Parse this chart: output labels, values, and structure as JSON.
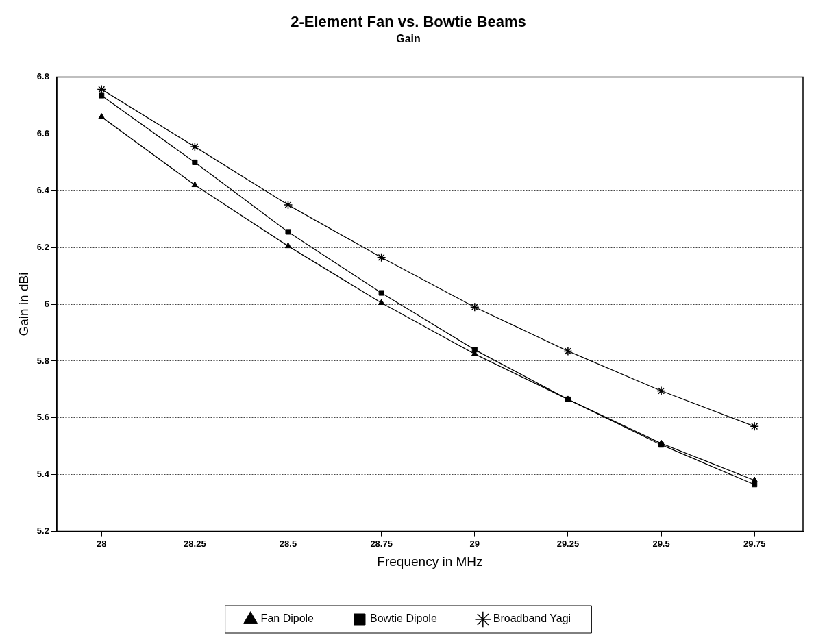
{
  "chart_data": {
    "type": "line",
    "title": "2-Element Fan vs. Bowtie Beams",
    "subtitle": "Gain",
    "xlabel": "Frequency in MHz",
    "ylabel": "Gain in dBi",
    "x": [
      28,
      28.25,
      28.5,
      28.75,
      29,
      29.25,
      29.5,
      29.75
    ],
    "series": [
      {
        "name": "Fan Dipole",
        "color": "#000000",
        "marker": "triangle",
        "values": [
          6.66,
          6.42,
          6.205,
          6.005,
          5.825,
          5.665,
          5.51,
          5.38
        ]
      },
      {
        "name": "Bowtie Dipole",
        "color": "#000000",
        "marker": "square",
        "values": [
          6.735,
          6.5,
          6.255,
          6.04,
          5.84,
          5.665,
          5.505,
          5.365
        ]
      },
      {
        "name": "Broadband Yagi",
        "color": "#000000",
        "marker": "cross",
        "values": [
          6.757,
          6.555,
          6.35,
          6.165,
          5.99,
          5.835,
          5.695,
          5.57
        ]
      }
    ],
    "xlim": [
      27.88,
      29.88
    ],
    "xticks": [
      28,
      28.25,
      28.5,
      28.75,
      29,
      29.25,
      29.5,
      29.75
    ],
    "ylim": [
      5.2,
      6.8
    ],
    "yticks": [
      5.2,
      5.4,
      5.6,
      5.8,
      6,
      6.2,
      6.4,
      6.6,
      6.8
    ],
    "grid": "y",
    "legend": "bottom",
    "line_style": "solid"
  }
}
